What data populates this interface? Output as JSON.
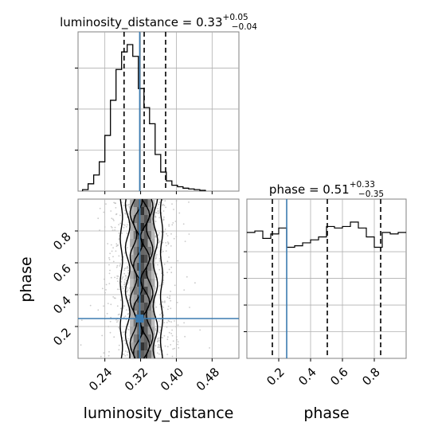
{
  "chart_data": {
    "type": "corner",
    "colors": {
      "truth": "#3b7bb0",
      "hist": "#000000",
      "grid": "#b0b0b0",
      "points": "#bdbdbd"
    },
    "grid": true,
    "legend": "none",
    "parameters": [
      {
        "name": "luminosity_distance",
        "xlabel": "luminosity_distance"
      },
      {
        "name": "phase",
        "ylabel": "phase",
        "xlabel": "phase"
      }
    ],
    "panels": {
      "lum_hist": {
        "title_prefix": "luminosity_distance = 0.33",
        "title_sup": "+0.05",
        "title_sub": "−0.04",
        "xlim": [
          0.18,
          0.54
        ],
        "xticks": [
          0.24,
          0.32,
          0.4,
          0.48
        ],
        "ymax": 1.0,
        "bins": {
          "start": 0.19,
          "width": 0.0125,
          "heights": [
            0.01,
            0.05,
            0.11,
            0.2,
            0.38,
            0.62,
            0.83,
            0.95,
            1.0,
            0.92,
            0.7,
            0.57,
            0.46,
            0.25,
            0.13,
            0.07,
            0.04,
            0.03,
            0.02,
            0.015,
            0.01,
            0.005
          ]
        },
        "quantiles": [
          0.283,
          0.328,
          0.376
        ],
        "truth": 0.318
      },
      "phase_hist": {
        "title_prefix": "phase = 0.51",
        "title_sup": "+0.33",
        "title_sub": "−0.35",
        "xlim": [
          0.0,
          1.0
        ],
        "xticks": [
          0.2,
          0.4,
          0.6,
          0.8
        ],
        "ymax": 1.0,
        "bins": {
          "start": 0.0,
          "width": 0.05,
          "heights": [
            0.85,
            0.86,
            0.81,
            0.84,
            0.88,
            0.75,
            0.76,
            0.78,
            0.8,
            0.82,
            0.89,
            0.88,
            0.89,
            0.92,
            0.88,
            0.82,
            0.75,
            0.85,
            0.84,
            0.85
          ]
        },
        "quantiles": [
          0.16,
          0.505,
          0.84
        ],
        "truth": 0.25
      },
      "joint": {
        "xlim": [
          0.18,
          0.54
        ],
        "ylim": [
          0.0,
          1.0
        ],
        "xticks": [
          0.24,
          0.32,
          0.4,
          0.48
        ],
        "yticks": [
          0.2,
          0.4,
          0.6,
          0.8
        ],
        "truth": [
          0.318,
          0.25
        ],
        "contour_levels": [
          {
            "sigma": 0.016,
            "center": 0.32,
            "color": "#d6d6d6"
          },
          {
            "sigma": 0.011,
            "center": 0.32,
            "color": "#a8a8a8"
          },
          {
            "sigma": 0.007,
            "center": 0.32,
            "color": "#727272"
          },
          {
            "sigma": 0.004,
            "center": 0.32,
            "color": "#3e3e3e"
          }
        ]
      }
    }
  }
}
